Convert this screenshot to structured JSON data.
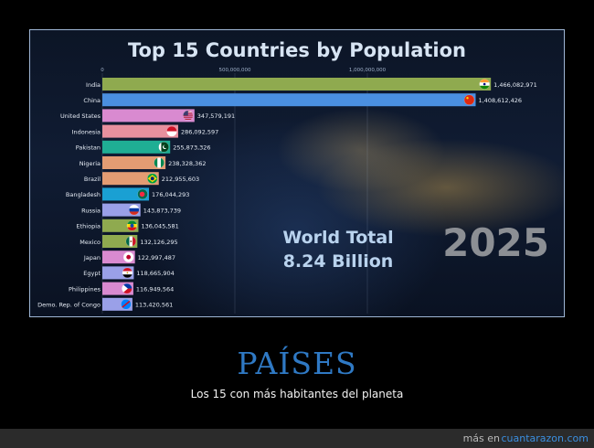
{
  "chart_data": {
    "type": "bar",
    "orientation": "horizontal",
    "title": "Top 15 Countries by Population",
    "categories": [
      "India",
      "China",
      "United States",
      "Indonesia",
      "Pakistan",
      "Nigeria",
      "Brazil",
      "Bangladesh",
      "Russia",
      "Ethiopia",
      "Mexico",
      "Japan",
      "Egypt",
      "Philippines",
      "Demo. Rep. of Congo"
    ],
    "values": [
      1466082971,
      1408612426,
      347579191,
      286092597,
      255873326,
      238328362,
      212955603,
      176044293,
      143873739,
      136045581,
      132126295,
      122997487,
      118665904,
      116949564,
      113420561
    ],
    "value_labels": [
      "1,466,082,971",
      "1,408,612,426",
      "347,579,191",
      "286,092,597",
      "255,873,326",
      "238,328,362",
      "212,955,603",
      "176,044,293",
      "143,873,739",
      "136,045,581",
      "132,126,295",
      "122,997,487",
      "118,665,904",
      "116,949,564",
      "113,420,561"
    ],
    "bar_colors": [
      "#8faa4f",
      "#4a8fe0",
      "#d98ad0",
      "#e8909e",
      "#1fae94",
      "#e39c73",
      "#e39c73",
      "#1aa0d3",
      "#9aa0e8",
      "#8faa4f",
      "#8faa4f",
      "#d98ad0",
      "#9aa0e8",
      "#d98ad0",
      "#9aa0e8"
    ],
    "flags": [
      "india-flag",
      "china-flag",
      "usa-flag",
      "indonesia-flag",
      "pakistan-flag",
      "nigeria-flag",
      "brazil-flag",
      "bangladesh-flag",
      "russia-flag",
      "ethiopia-flag",
      "mexico-flag",
      "japan-flag",
      "egypt-flag",
      "philippines-flag",
      "drc-flag"
    ],
    "x_ticks": [
      0,
      500000000,
      1000000000
    ],
    "x_tick_labels": [
      "0",
      "500,000,000",
      "1,000,000,000"
    ],
    "xlim": [
      0,
      1500000000
    ],
    "grid": true
  },
  "overlay": {
    "world_total_line1": "World Total",
    "world_total_line2": "8.24 Billion",
    "year": "2025"
  },
  "caption": {
    "title": "PAÍSES",
    "subtitle": "Los 15 con más habitantes del planeta"
  },
  "footer": {
    "prefix": "más en",
    "link": "cuantarazon.com"
  }
}
